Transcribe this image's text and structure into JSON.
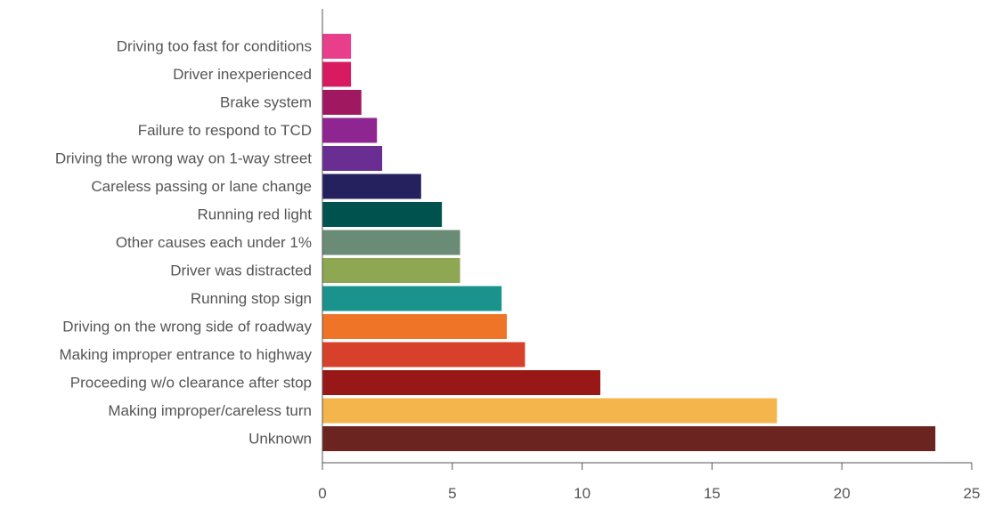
{
  "chart_data": {
    "type": "bar",
    "orientation": "horizontal",
    "title": "",
    "xlabel": "",
    "ylabel": "",
    "xlim": [
      0,
      25
    ],
    "xticks": [
      0,
      5,
      10,
      15,
      20,
      25
    ],
    "grid": false,
    "legend": "none",
    "categories": [
      "Driving too fast for conditions",
      "Driver inexperienced",
      "Brake system",
      "Failure to respond to TCD",
      "Driving the wrong way on 1-way street",
      "Careless passing or lane change",
      "Running red light",
      "Other causes each under 1%",
      "Driver was distracted",
      "Running stop sign",
      "Driving on the wrong side of roadway",
      "Making improper entrance to highway",
      "Proceeding w/o clearance after stop",
      "Making improper/careless turn",
      "Unknown"
    ],
    "values": [
      1.1,
      1.1,
      1.5,
      2.1,
      2.3,
      3.8,
      4.6,
      5.3,
      5.3,
      6.9,
      7.1,
      7.8,
      10.7,
      17.5,
      23.6
    ],
    "colors": [
      "#e83e8c",
      "#d81b60",
      "#a0185f",
      "#8e2590",
      "#6a2d91",
      "#25205e",
      "#00524f",
      "#6a8c77",
      "#8ea752",
      "#1a938c",
      "#f07427",
      "#d7402a",
      "#981818",
      "#f4b54c",
      "#6b2420"
    ]
  }
}
